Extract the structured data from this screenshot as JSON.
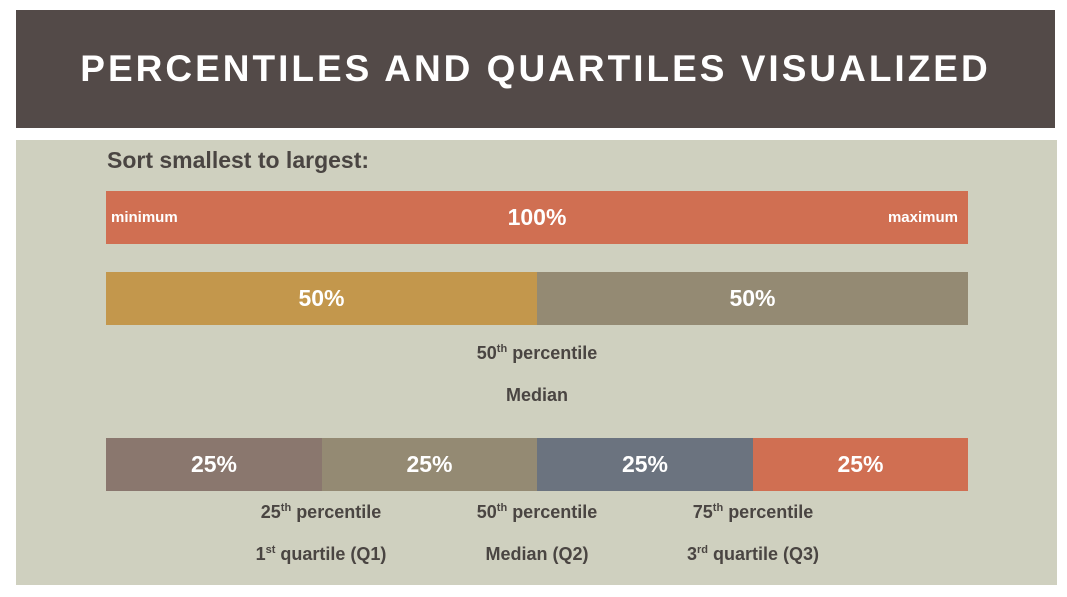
{
  "title": "PERCENTILES AND QUARTILES VISUALIZED",
  "heading": "Sort smallest to largest:",
  "colors": {
    "title_bg": "#534a48",
    "content_bg": "#cfd0bf",
    "orange": "#d06f52",
    "gold": "#c3974c",
    "taupe": "#948a73",
    "mauve": "#8a776e",
    "slate": "#6b737f"
  },
  "row_full": {
    "left_label": "minimum",
    "center_label": "100%",
    "right_label": "maximum"
  },
  "row_halves": {
    "segments": [
      {
        "label": "50%",
        "share": 0.5
      },
      {
        "label": "50%",
        "share": 0.5
      }
    ],
    "caption_line1": {
      "num": "50",
      "sup": "th",
      "text": " percentile"
    },
    "caption_line2": "Median"
  },
  "row_quarters": {
    "segments": [
      {
        "label": "25%",
        "share": 0.25
      },
      {
        "label": "25%",
        "share": 0.25
      },
      {
        "label": "25%",
        "share": 0.25
      },
      {
        "label": "25%",
        "share": 0.25
      }
    ],
    "captions": [
      {
        "percentile": {
          "num": "25",
          "sup": "th",
          "text": " percentile"
        },
        "quartile": {
          "num": "1",
          "sup": "st",
          "text": " quartile (Q1)"
        }
      },
      {
        "percentile": {
          "num": "50",
          "sup": "th",
          "text": " percentile"
        },
        "quartile": {
          "num": "",
          "sup": "",
          "text": "Median (Q2)"
        }
      },
      {
        "percentile": {
          "num": "75",
          "sup": "th",
          "text": " percentile"
        },
        "quartile": {
          "num": "3",
          "sup": "rd",
          "text": " quartile (Q3)"
        }
      }
    ]
  }
}
